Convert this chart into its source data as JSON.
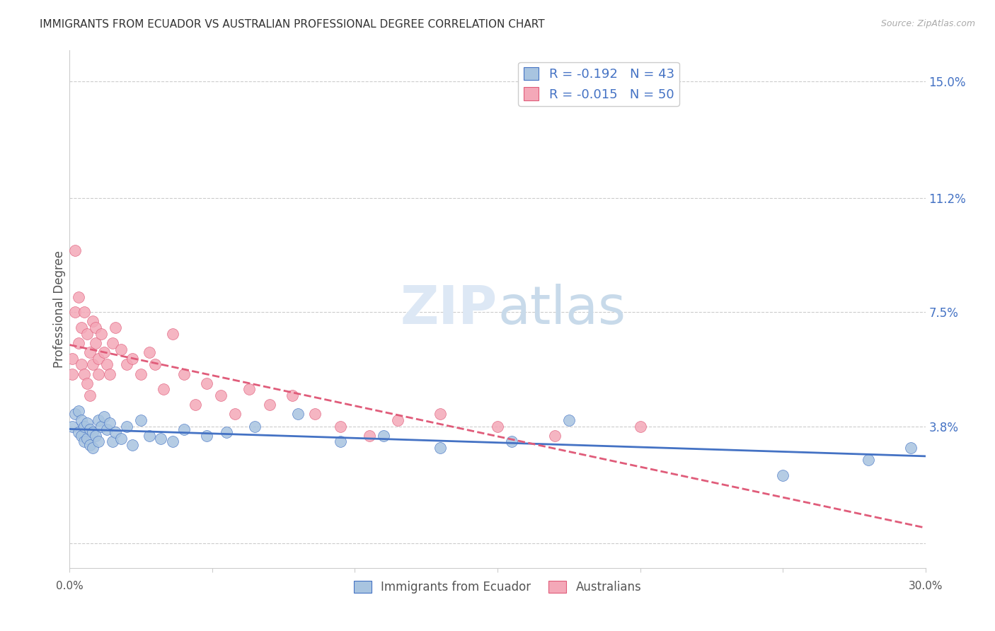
{
  "title": "IMMIGRANTS FROM ECUADOR VS AUSTRALIAN PROFESSIONAL DEGREE CORRELATION CHART",
  "source": "Source: ZipAtlas.com",
  "ylabel": "Professional Degree",
  "yticks": [
    0.0,
    0.038,
    0.075,
    0.112,
    0.15
  ],
  "ytick_labels": [
    "",
    "3.8%",
    "7.5%",
    "11.2%",
    "15.0%"
  ],
  "xlim": [
    0.0,
    0.3
  ],
  "ylim": [
    -0.008,
    0.16
  ],
  "watermark_zip": "ZIP",
  "watermark_atlas": "atlas",
  "ecuador_x": [
    0.001,
    0.002,
    0.003,
    0.003,
    0.004,
    0.004,
    0.005,
    0.005,
    0.006,
    0.006,
    0.007,
    0.007,
    0.008,
    0.008,
    0.009,
    0.01,
    0.01,
    0.011,
    0.012,
    0.013,
    0.014,
    0.015,
    0.016,
    0.018,
    0.02,
    0.022,
    0.025,
    0.028,
    0.032,
    0.036,
    0.04,
    0.048,
    0.055,
    0.065,
    0.08,
    0.095,
    0.11,
    0.13,
    0.155,
    0.175,
    0.25,
    0.28,
    0.295
  ],
  "ecuador_y": [
    0.038,
    0.042,
    0.036,
    0.043,
    0.04,
    0.035,
    0.038,
    0.033,
    0.039,
    0.034,
    0.037,
    0.032,
    0.036,
    0.031,
    0.035,
    0.04,
    0.033,
    0.038,
    0.041,
    0.037,
    0.039,
    0.033,
    0.036,
    0.034,
    0.038,
    0.032,
    0.04,
    0.035,
    0.034,
    0.033,
    0.037,
    0.035,
    0.036,
    0.038,
    0.042,
    0.033,
    0.035,
    0.031,
    0.033,
    0.04,
    0.022,
    0.027,
    0.031
  ],
  "australia_x": [
    0.001,
    0.001,
    0.002,
    0.002,
    0.003,
    0.003,
    0.004,
    0.004,
    0.005,
    0.005,
    0.006,
    0.006,
    0.007,
    0.007,
    0.008,
    0.008,
    0.009,
    0.009,
    0.01,
    0.01,
    0.011,
    0.012,
    0.013,
    0.014,
    0.015,
    0.016,
    0.018,
    0.02,
    0.022,
    0.025,
    0.028,
    0.03,
    0.033,
    0.036,
    0.04,
    0.044,
    0.048,
    0.053,
    0.058,
    0.063,
    0.07,
    0.078,
    0.086,
    0.095,
    0.105,
    0.115,
    0.13,
    0.15,
    0.17,
    0.2
  ],
  "australia_y": [
    0.06,
    0.055,
    0.095,
    0.075,
    0.08,
    0.065,
    0.07,
    0.058,
    0.075,
    0.055,
    0.068,
    0.052,
    0.062,
    0.048,
    0.058,
    0.072,
    0.065,
    0.07,
    0.06,
    0.055,
    0.068,
    0.062,
    0.058,
    0.055,
    0.065,
    0.07,
    0.063,
    0.058,
    0.06,
    0.055,
    0.062,
    0.058,
    0.05,
    0.068,
    0.055,
    0.045,
    0.052,
    0.048,
    0.042,
    0.05,
    0.045,
    0.048,
    0.042,
    0.038,
    0.035,
    0.04,
    0.042,
    0.038,
    0.035,
    0.038
  ],
  "ecuador_line_color": "#4472c4",
  "australia_line_color": "#e05c7a",
  "ecuador_dot_color": "#a8c4e0",
  "australia_dot_color": "#f4a8b8",
  "ecuador_R": -0.192,
  "ecuador_N": 43,
  "australia_R": -0.015,
  "australia_N": 50,
  "grid_color": "#cccccc",
  "background_color": "#ffffff"
}
